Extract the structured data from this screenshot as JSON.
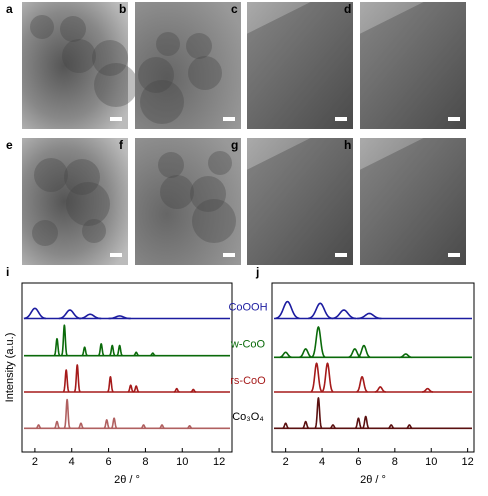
{
  "panels": [
    "a",
    "b",
    "c",
    "d",
    "e",
    "f",
    "g",
    "h"
  ],
  "charts": [
    {
      "label": "i",
      "type": "xrd",
      "xlabel": "2θ / °",
      "ylabel": "Intensity (a.u.)",
      "xlim": [
        1.3,
        12.7
      ],
      "xticks": [
        2,
        4,
        6,
        8,
        10,
        12
      ],
      "ylim": [
        0,
        10
      ],
      "series": [
        {
          "name": "CoOOH",
          "color": "#1c1ca0",
          "offset": 7.9,
          "width": 0.2,
          "x": [
            2.0,
            3.9,
            5.0,
            6.6
          ],
          "values": [
            0.6,
            0.5,
            0.25,
            0.15
          ]
        },
        {
          "name": "w-CoO",
          "color": "#0a6a0a",
          "offset": 5.7,
          "width": 0.05,
          "x": [
            3.2,
            3.6,
            4.7,
            5.6,
            6.2,
            6.6,
            7.5,
            8.4
          ],
          "values": [
            1.0,
            1.8,
            0.5,
            0.7,
            0.6,
            0.6,
            0.2,
            0.15
          ]
        },
        {
          "name": "rs-CoO",
          "color": "#a51a1a",
          "offset": 3.55,
          "width": 0.05,
          "x": [
            3.7,
            4.3,
            6.1,
            7.2,
            7.5,
            9.7,
            10.6
          ],
          "values": [
            1.3,
            1.6,
            0.9,
            0.4,
            0.35,
            0.2,
            0.15
          ]
        },
        {
          "name": "Co₃O₄",
          "color": "#b06060",
          "offset": 1.4,
          "width": 0.05,
          "x": [
            2.2,
            3.2,
            3.75,
            4.5,
            5.9,
            6.3,
            7.9,
            8.9,
            10.4
          ],
          "values": [
            0.2,
            0.4,
            1.7,
            0.3,
            0.5,
            0.6,
            0.2,
            0.2,
            0.15
          ]
        }
      ]
    },
    {
      "label": "j",
      "type": "xrd",
      "xlabel": "2θ / °",
      "xlim": [
        1.25,
        12.35
      ],
      "xticks": [
        2,
        4,
        6,
        8,
        10,
        12
      ],
      "ylim": [
        0,
        10
      ],
      "series": [
        {
          "color": "#1c1ca0",
          "offset": 7.9,
          "width": 0.22,
          "x": [
            2.1,
            3.9,
            5.2,
            6.6
          ],
          "values": [
            1.0,
            0.9,
            0.5,
            0.3
          ]
        },
        {
          "color": "#0a6a0a",
          "offset": 5.6,
          "width": 0.12,
          "x": [
            2.0,
            3.1,
            3.8,
            5.8,
            6.3,
            8.6
          ],
          "values": [
            0.3,
            0.5,
            1.8,
            0.5,
            0.7,
            0.2
          ]
        },
        {
          "color": "#a51a1a",
          "offset": 3.55,
          "width": 0.1,
          "x": [
            3.7,
            4.3,
            6.2,
            7.2,
            9.8
          ],
          "values": [
            1.7,
            1.7,
            0.9,
            0.3,
            0.2
          ]
        },
        {
          "color": "#5a1010",
          "offset": 1.4,
          "width": 0.06,
          "x": [
            2.0,
            3.1,
            3.8,
            4.6,
            6.0,
            6.4,
            7.8,
            8.8
          ],
          "values": [
            0.3,
            0.4,
            1.8,
            0.2,
            0.6,
            0.7,
            0.2,
            0.2
          ]
        }
      ]
    }
  ]
}
